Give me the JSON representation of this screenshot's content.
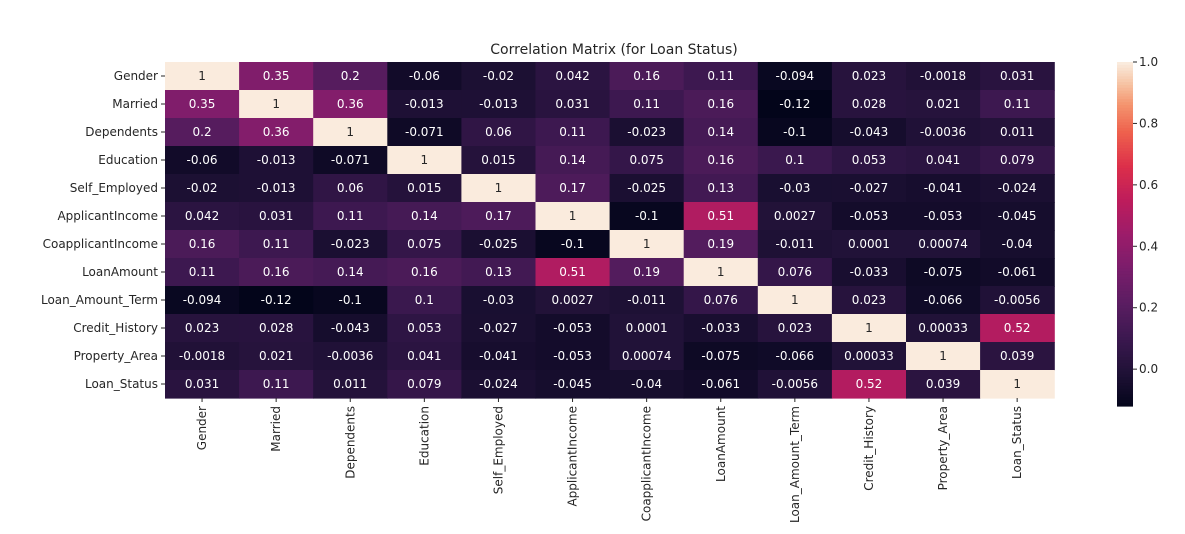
{
  "chart_data": {
    "type": "heatmap",
    "title": "Correlation Matrix (for Loan Status)",
    "x_labels": [
      "Gender",
      "Married",
      "Dependents",
      "Education",
      "Self_Employed",
      "ApplicantIncome",
      "CoapplicantIncome",
      "LoanAmount",
      "Loan_Amount_Term",
      "Credit_History",
      "Property_Area",
      "Loan_Status"
    ],
    "y_labels": [
      "Gender",
      "Married",
      "Dependents",
      "Education",
      "Self_Employed",
      "ApplicantIncome",
      "CoapplicantIncome",
      "LoanAmount",
      "Loan_Amount_Term",
      "Credit_History",
      "Property_Area",
      "Loan_Status"
    ],
    "values": [
      [
        1,
        0.35,
        0.2,
        -0.06,
        -0.02,
        0.042,
        0.16,
        0.11,
        -0.094,
        0.023,
        -0.0018,
        0.031
      ],
      [
        0.35,
        1,
        0.36,
        -0.013,
        -0.013,
        0.031,
        0.11,
        0.16,
        -0.12,
        0.028,
        0.021,
        0.11
      ],
      [
        0.2,
        0.36,
        1,
        -0.071,
        0.06,
        0.11,
        -0.023,
        0.14,
        -0.1,
        -0.043,
        -0.0036,
        0.011
      ],
      [
        -0.06,
        -0.013,
        -0.071,
        1,
        0.015,
        0.14,
        0.075,
        0.16,
        0.1,
        0.053,
        0.041,
        0.079
      ],
      [
        -0.02,
        -0.013,
        0.06,
        0.015,
        1,
        0.17,
        -0.025,
        0.13,
        -0.03,
        -0.027,
        -0.041,
        -0.024
      ],
      [
        0.042,
        0.031,
        0.11,
        0.14,
        0.17,
        1,
        -0.1,
        0.51,
        0.0027,
        -0.053,
        -0.053,
        -0.045
      ],
      [
        0.16,
        0.11,
        -0.023,
        0.075,
        -0.025,
        -0.1,
        1,
        0.19,
        -0.011,
        0.0001,
        0.00074,
        -0.04
      ],
      [
        0.11,
        0.16,
        0.14,
        0.16,
        0.13,
        0.51,
        0.19,
        1,
        0.076,
        -0.033,
        -0.075,
        -0.061
      ],
      [
        -0.094,
        -0.12,
        -0.1,
        0.1,
        -0.03,
        0.0027,
        -0.011,
        0.076,
        1,
        0.023,
        -0.066,
        -0.0056
      ],
      [
        0.023,
        0.028,
        -0.043,
        0.053,
        -0.027,
        -0.053,
        0.0001,
        -0.033,
        0.023,
        1,
        0.00033,
        0.52
      ],
      [
        -0.0018,
        0.021,
        -0.0036,
        0.041,
        -0.041,
        -0.053,
        0.00074,
        -0.075,
        -0.066,
        0.00033,
        1,
        0.039
      ],
      [
        0.031,
        0.11,
        0.011,
        0.079,
        -0.024,
        -0.045,
        -0.04,
        -0.061,
        -0.0056,
        0.52,
        0.039,
        1
      ]
    ],
    "colorscale": "rocket",
    "vmin": -0.12,
    "vmax": 1.0,
    "colorbar_ticks": [
      "0.0",
      "0.2",
      "0.4",
      "0.6",
      "0.8",
      "1.0"
    ],
    "annotations": true
  }
}
